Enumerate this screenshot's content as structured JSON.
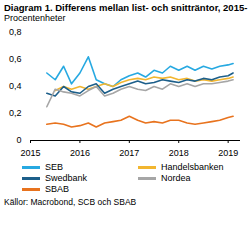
{
  "chart_data": {
    "type": "line",
    "title": "Diagram 1. Differens mellan list- och snitträntor, 2015-",
    "subtitle": "Procentenheter",
    "caption": "Källor: Macrobond, SCB och SBAB",
    "x": [
      2015.33,
      2015.5,
      2015.67,
      2015.83,
      2016.0,
      2016.17,
      2016.33,
      2016.5,
      2016.67,
      2016.83,
      2017.0,
      2017.17,
      2017.33,
      2017.5,
      2017.67,
      2017.83,
      2018.0,
      2018.17,
      2018.33,
      2018.5,
      2018.67,
      2018.83,
      2019.0,
      2019.1
    ],
    "series": [
      {
        "name": "SEB",
        "color": "#27a9e1",
        "values": [
          0.5,
          0.45,
          0.55,
          0.42,
          0.5,
          0.62,
          0.45,
          0.42,
          0.4,
          0.45,
          0.48,
          0.5,
          0.47,
          0.52,
          0.5,
          0.55,
          0.52,
          0.55,
          0.52,
          0.55,
          0.53,
          0.55,
          0.56,
          0.57
        ]
      },
      {
        "name": "Handelsbanken",
        "color": "#f2b630",
        "values": [
          null,
          0.37,
          0.4,
          0.38,
          0.4,
          0.38,
          0.4,
          0.42,
          0.4,
          0.43,
          0.45,
          0.46,
          0.45,
          0.47,
          0.46,
          0.47,
          0.45,
          0.46,
          0.44,
          0.45,
          0.44,
          0.45,
          0.46,
          0.47
        ]
      },
      {
        "name": "Swedbank",
        "color": "#1d5f8a",
        "values": [
          0.35,
          0.33,
          0.4,
          0.36,
          0.35,
          0.4,
          0.42,
          0.35,
          0.38,
          0.4,
          0.42,
          0.44,
          0.42,
          0.43,
          0.45,
          0.44,
          0.43,
          0.45,
          0.44,
          0.46,
          0.45,
          0.47,
          0.48,
          0.5
        ]
      },
      {
        "name": "Nordea",
        "color": "#a6a6a6",
        "values": [
          0.25,
          0.38,
          0.36,
          0.35,
          0.33,
          0.37,
          0.4,
          0.33,
          0.35,
          0.38,
          0.4,
          0.38,
          0.37,
          0.4,
          0.38,
          0.42,
          0.4,
          0.42,
          0.4,
          0.42,
          0.42,
          0.43,
          0.44,
          0.45
        ]
      },
      {
        "name": "SBAB",
        "color": "#e8731e",
        "values": [
          0.12,
          0.13,
          0.12,
          0.1,
          0.11,
          0.13,
          0.1,
          0.13,
          0.14,
          0.15,
          0.18,
          0.15,
          0.13,
          0.14,
          0.13,
          0.15,
          0.15,
          0.13,
          0.12,
          0.13,
          0.14,
          0.15,
          0.17,
          0.18
        ]
      }
    ],
    "xlim": [
      2015,
      2019.25
    ],
    "xticks": [
      2015,
      2016,
      2017,
      2018,
      2019
    ],
    "ylim": [
      0,
      0.8
    ],
    "yticks": [
      0,
      {
        "value": 0.2,
        "label": "0,2"
      },
      {
        "value": 0.4,
        "label": "0,4"
      },
      {
        "value": 0.6,
        "label": "0,6"
      },
      {
        "value": 0.8,
        "label": "0,8"
      }
    ],
    "grid": false,
    "legend": "bottom"
  }
}
